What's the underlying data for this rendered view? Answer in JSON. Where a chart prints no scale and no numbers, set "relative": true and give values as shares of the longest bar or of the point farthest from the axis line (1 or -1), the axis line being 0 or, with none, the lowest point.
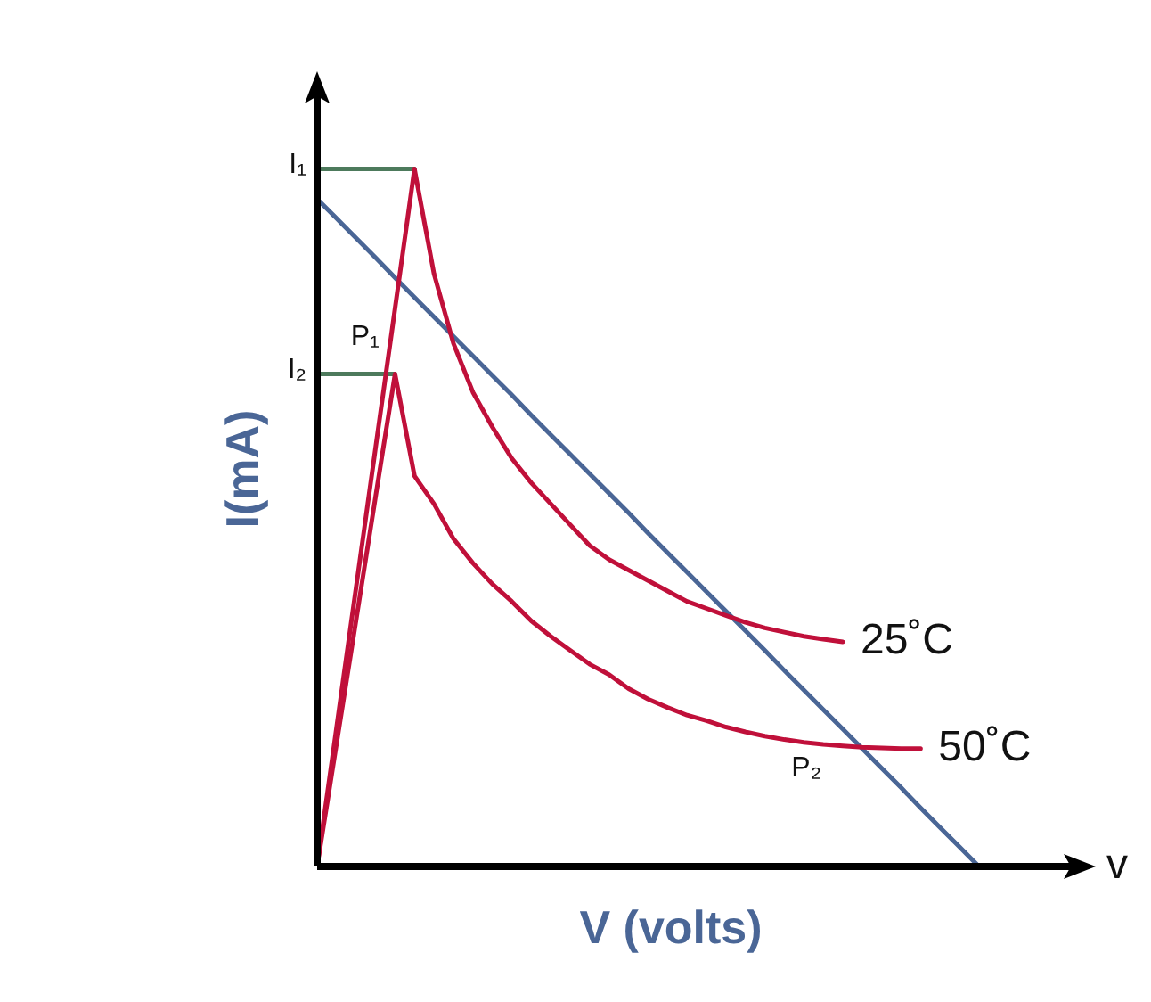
{
  "chart_data": {
    "type": "line",
    "relative": true,
    "xlabel": "V (volts)",
    "ylabel": "I(mA)",
    "legend": false,
    "marker": "none",
    "line_style": "solid",
    "categories": [
      null,
      null,
      null,
      null,
      null,
      null,
      null,
      null,
      null,
      null,
      null,
      null,
      null,
      null,
      null,
      null,
      null,
      null,
      null,
      null,
      null,
      null,
      null,
      null,
      null,
      null,
      null,
      null,
      null,
      null,
      null,
      null,
      null,
      null,
      null,
      null,
      null,
      null,
      null,
      null,
      null
    ],
    "series": [
      {
        "name": "25˚C",
        "color": "#c0103a",
        "values": [
          0,
          0.2,
          0.4,
          0.6,
          0.8,
          1,
          0.85,
          0.75,
          0.68,
          0.63,
          0.585,
          0.55,
          0.52,
          0.49,
          0.46,
          0.44,
          0.425,
          0.41,
          0.395,
          0.38,
          0.37,
          0.36,
          0.35,
          0.342,
          0.336,
          0.33,
          0.326,
          0.322,
          null,
          null,
          null,
          null,
          null,
          null,
          null,
          null,
          null,
          null,
          null,
          null,
          null
        ]
      },
      {
        "name": "50˚C",
        "color": "#c0103a",
        "values": [
          0,
          0.1765,
          0.353,
          0.53,
          0.706,
          0.56,
          0.52,
          0.47,
          0.435,
          0.405,
          0.38,
          0.352,
          0.33,
          0.31,
          0.29,
          0.275,
          0.255,
          0.24,
          0.228,
          0.217,
          0.209,
          0.2,
          0.193,
          0.187,
          0.182,
          0.178,
          0.175,
          0.173,
          0.171,
          0.17,
          0.169,
          0.169,
          null,
          null,
          null,
          null,
          null,
          null,
          null,
          null,
          null
        ]
      },
      {
        "color": "#4a6696",
        "values": [
          0.957,
          0.929,
          0.901,
          0.873,
          0.844,
          0.816,
          0.788,
          0.76,
          0.732,
          0.704,
          0.676,
          0.647,
          0.619,
          0.591,
          0.563,
          0.535,
          0.507,
          0.478,
          0.45,
          0.422,
          0.394,
          0.366,
          0.338,
          0.31,
          0.281,
          0.253,
          0.225,
          0.197,
          0.169,
          0.141,
          0.113,
          0.084,
          0.056,
          0.028,
          0,
          null,
          null,
          null,
          null,
          null,
          null
        ]
      },
      {
        "color": "#4d7a5c",
        "values": [
          1,
          1,
          1,
          1,
          1,
          1,
          null,
          null,
          null,
          null,
          null,
          null,
          null,
          null,
          null,
          null,
          null,
          null,
          null,
          null,
          null,
          null,
          null,
          null,
          null,
          null,
          null,
          null,
          null,
          null,
          null,
          null,
          null,
          null,
          null,
          null,
          null,
          null,
          null,
          null,
          null
        ]
      },
      {
        "color": "#4d7a5c",
        "values": [
          0.706,
          0.706,
          0.706,
          0.706,
          0.706,
          null,
          null,
          null,
          null,
          null,
          null,
          null,
          null,
          null,
          null,
          null,
          null,
          null,
          null,
          null,
          null,
          null,
          null,
          null,
          null,
          null,
          null,
          null,
          null,
          null,
          null,
          null,
          null,
          null,
          null,
          null,
          null,
          null,
          null,
          null,
          null
        ]
      }
    ],
    "annotations": [
      "I₁",
      "I₂",
      "P₁",
      "P₂",
      "v"
    ]
  }
}
